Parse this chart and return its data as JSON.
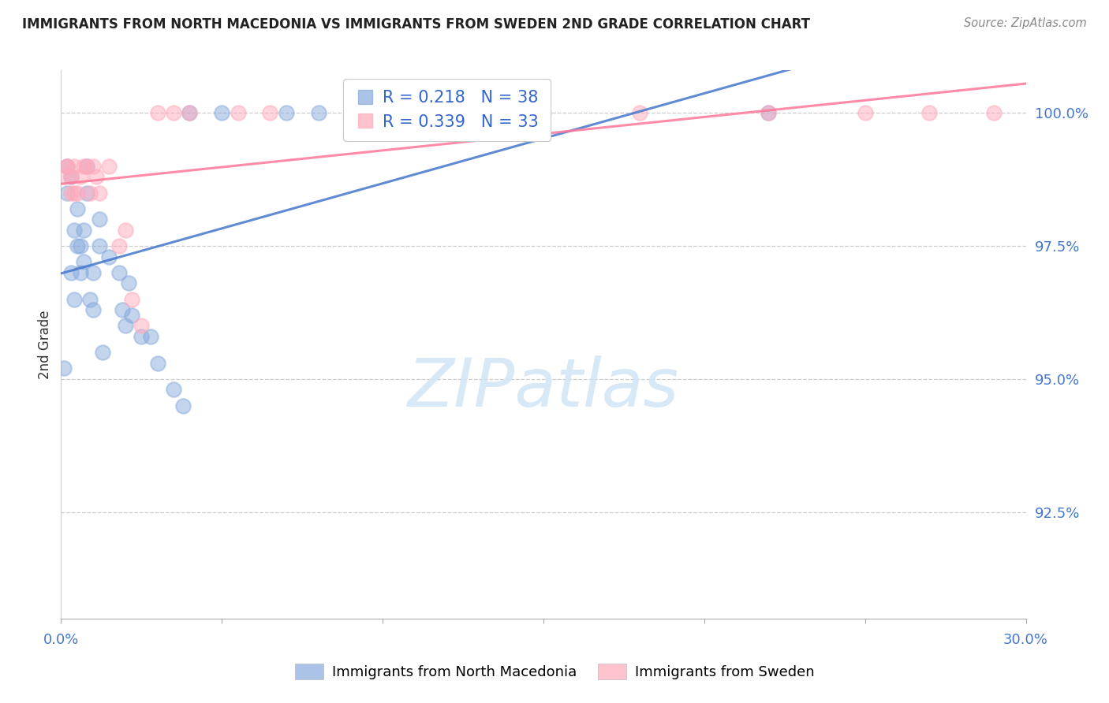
{
  "title": "IMMIGRANTS FROM NORTH MACEDONIA VS IMMIGRANTS FROM SWEDEN 2ND GRADE CORRELATION CHART",
  "source": "Source: ZipAtlas.com",
  "ylabel": "2nd Grade",
  "ytick_labels": [
    "100.0%",
    "97.5%",
    "95.0%",
    "92.5%"
  ],
  "ytick_values": [
    1.0,
    0.975,
    0.95,
    0.925
  ],
  "xlim": [
    0.0,
    0.3
  ],
  "ylim": [
    0.905,
    1.008
  ],
  "blue_color": "#88AADD",
  "pink_color": "#FFAABB",
  "blue_line_color": "#4477CC",
  "pink_line_color": "#FF7799",
  "legend_label1": "Immigrants from North Macedonia",
  "legend_label2": "Immigrants from Sweden",
  "R1": "0.218",
  "N1": "38",
  "R2": "0.339",
  "N2": "33",
  "north_macedonia_x": [
    0.001,
    0.002,
    0.002,
    0.003,
    0.003,
    0.004,
    0.004,
    0.005,
    0.005,
    0.006,
    0.006,
    0.007,
    0.007,
    0.008,
    0.008,
    0.009,
    0.01,
    0.01,
    0.012,
    0.012,
    0.013,
    0.015,
    0.018,
    0.019,
    0.02,
    0.021,
    0.022,
    0.025,
    0.028,
    0.03,
    0.035,
    0.038,
    0.04,
    0.05,
    0.07,
    0.08,
    0.12,
    0.22
  ],
  "north_macedonia_y": [
    0.952,
    0.99,
    0.985,
    0.988,
    0.97,
    0.965,
    0.978,
    0.982,
    0.975,
    0.975,
    0.97,
    0.972,
    0.978,
    0.985,
    0.99,
    0.965,
    0.963,
    0.97,
    0.975,
    0.98,
    0.955,
    0.973,
    0.97,
    0.963,
    0.96,
    0.968,
    0.962,
    0.958,
    0.958,
    0.953,
    0.948,
    0.945,
    1.0,
    1.0,
    1.0,
    1.0,
    1.0,
    1.0
  ],
  "sweden_x": [
    0.001,
    0.002,
    0.002,
    0.003,
    0.003,
    0.004,
    0.004,
    0.005,
    0.006,
    0.007,
    0.008,
    0.009,
    0.01,
    0.011,
    0.012,
    0.015,
    0.018,
    0.02,
    0.022,
    0.025,
    0.03,
    0.035,
    0.04,
    0.055,
    0.065,
    0.095,
    0.12,
    0.15,
    0.18,
    0.22,
    0.25,
    0.27,
    0.29
  ],
  "sweden_y": [
    0.988,
    0.99,
    0.99,
    0.985,
    0.988,
    0.985,
    0.99,
    0.985,
    0.988,
    0.99,
    0.99,
    0.985,
    0.99,
    0.988,
    0.985,
    0.99,
    0.975,
    0.978,
    0.965,
    0.96,
    1.0,
    1.0,
    1.0,
    1.0,
    1.0,
    1.0,
    1.0,
    1.0,
    1.0,
    1.0,
    1.0,
    1.0,
    1.0
  ]
}
